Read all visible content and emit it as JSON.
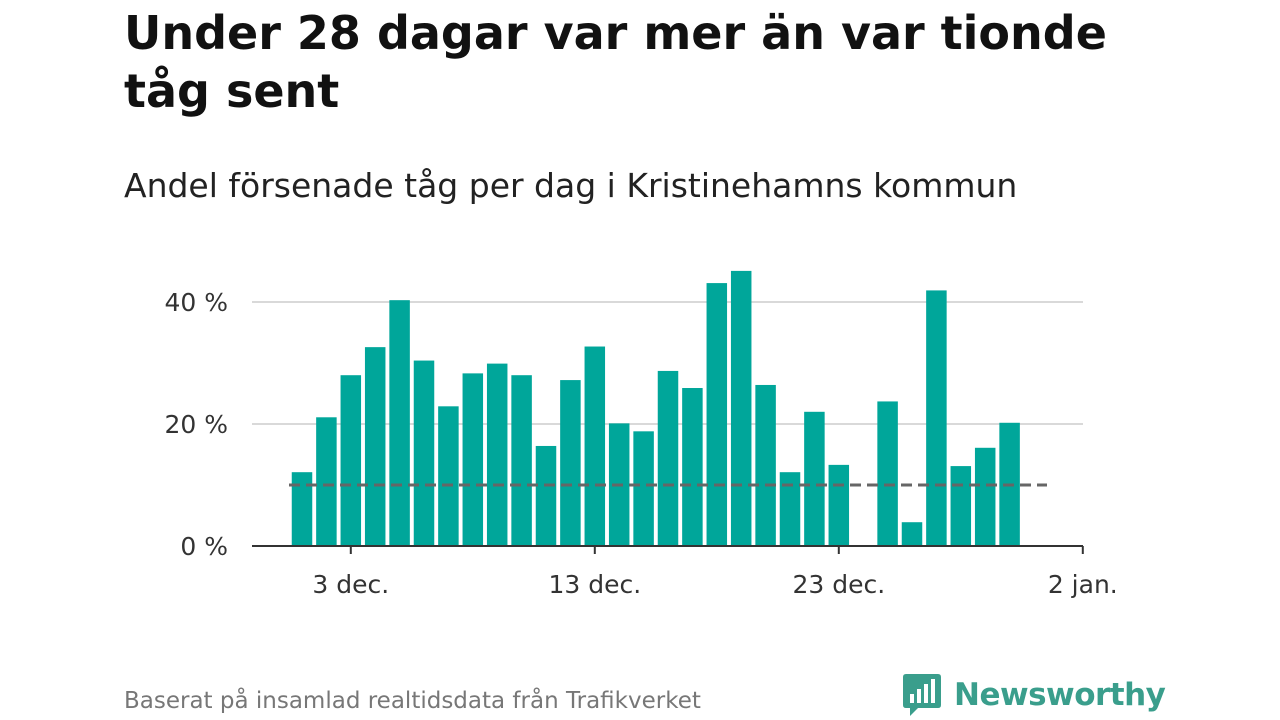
{
  "header": {
    "title": "Under 28 dagar var mer än var tionde tåg sent",
    "subtitle": "Andel försenade tåg per dag i Kristinehamns kommun"
  },
  "footer": {
    "source": "Baserat på insamlad realtidsdata från Trafikverket",
    "brand": "Newsworthy"
  },
  "colors": {
    "bar": "#00a69a",
    "reference_line": "#666666",
    "grid": "#d9d9d9",
    "axis": "#333333",
    "brand": "#3a9e8c"
  },
  "chart_data": {
    "type": "bar",
    "title": "Under 28 dagar var mer än var tionde tåg sent",
    "subtitle": "Andel försenade tåg per dag i Kristinehamns kommun",
    "x_unit": "day",
    "x": [
      "2023-12-01",
      "2023-12-02",
      "2023-12-03",
      "2023-12-04",
      "2023-12-05",
      "2023-12-06",
      "2023-12-07",
      "2023-12-08",
      "2023-12-09",
      "2023-12-10",
      "2023-12-11",
      "2023-12-12",
      "2023-12-13",
      "2023-12-14",
      "2023-12-15",
      "2023-12-16",
      "2023-12-17",
      "2023-12-18",
      "2023-12-19",
      "2023-12-20",
      "2023-12-21",
      "2023-12-22",
      "2023-12-23",
      "2023-12-24",
      "2023-12-25",
      "2023-12-26",
      "2023-12-27",
      "2023-12-28",
      "2023-12-29",
      "2023-12-30"
    ],
    "values": [
      12.1,
      21.1,
      28.0,
      32.6,
      40.3,
      30.4,
      22.9,
      28.3,
      29.9,
      28.0,
      16.4,
      27.2,
      32.7,
      20.1,
      18.8,
      28.7,
      25.9,
      43.1,
      45.1,
      26.4,
      12.1,
      22.0,
      13.3,
      null,
      23.7,
      3.9,
      41.9,
      13.1,
      16.1,
      20.2
    ],
    "reference_line": {
      "value": 10,
      "style": "dashed"
    },
    "ylim": [
      0,
      45
    ],
    "y_ticks": [
      0,
      20,
      40
    ],
    "y_tick_labels": [
      "0 %",
      "20 %",
      "40 %"
    ],
    "x_tick_dates": [
      "2023-12-03",
      "2023-12-13",
      "2023-12-23",
      "2024-01-02"
    ],
    "x_tick_labels": [
      "3 dec.",
      "13 dec.",
      "23 dec.",
      "2 jan."
    ],
    "xlabel": "",
    "ylabel": "",
    "grid": "horizontal"
  }
}
